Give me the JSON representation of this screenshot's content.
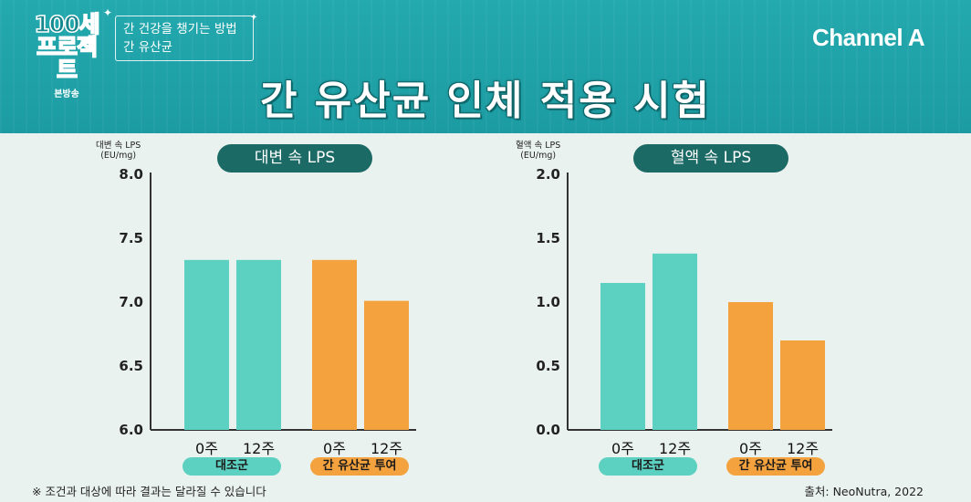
{
  "header": {
    "program_logo": [
      "100세",
      "프로젝트"
    ],
    "program_sub": "본방송",
    "topic_lines": [
      "간 건강을 챙기는 방법",
      "간 유산균"
    ],
    "channel": "Channel A",
    "main_title": "간 유산균 인체 적용 시험"
  },
  "colors": {
    "control": "#5dd1c1",
    "treatment": "#f4a23e",
    "title_pill": "#1c6a66",
    "header": "#23a9ae"
  },
  "chart_data": [
    {
      "type": "bar",
      "title": "대변 속 LPS",
      "ylabel": [
        "대변 속 LPS",
        "(EU/mg)"
      ],
      "ylim": [
        6.0,
        8.0
      ],
      "yticks": [
        "8.0",
        "7.5",
        "7.0",
        "6.5",
        "6.0"
      ],
      "ytick_values": [
        8.0,
        7.5,
        7.0,
        6.5,
        6.0
      ],
      "categories": [
        "0주",
        "12주",
        "0주",
        "12주"
      ],
      "groups": [
        "대조군",
        "간 유산균 투여"
      ],
      "values": [
        7.33,
        7.33,
        7.33,
        7.01
      ],
      "bar_groups": [
        0,
        0,
        1,
        1
      ]
    },
    {
      "type": "bar",
      "title": "혈액 속 LPS",
      "ylabel": [
        "혈액 속 LPS",
        "(EU/mg)"
      ],
      "ylim": [
        0.0,
        2.0
      ],
      "yticks": [
        "2.0",
        "1.5",
        "1.0",
        "0.5",
        "0.0"
      ],
      "ytick_values": [
        2.0,
        1.5,
        1.0,
        0.5,
        0.0
      ],
      "categories": [
        "0주",
        "12주",
        "0주",
        "12주"
      ],
      "groups": [
        "대조군",
        "간 유산균 투여"
      ],
      "values": [
        1.15,
        1.38,
        1.0,
        0.7
      ],
      "bar_groups": [
        0,
        0,
        1,
        1
      ]
    }
  ],
  "footer": {
    "note": "※ 조건과 대상에 따라 결과는 달라질 수 있습니다",
    "source": "출처: NeoNutra, 2022"
  }
}
